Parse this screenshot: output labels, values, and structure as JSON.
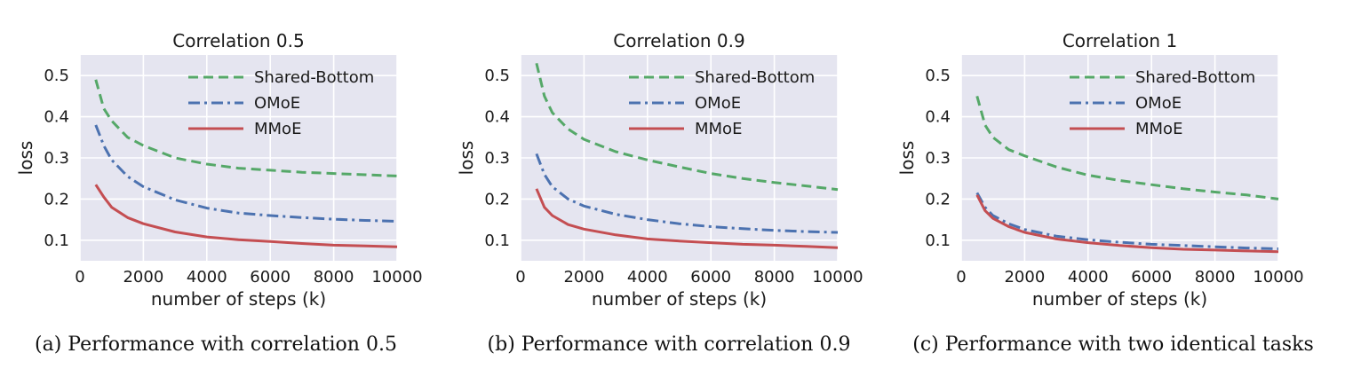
{
  "style": {
    "panel_background": "#e5e5f0",
    "grid_color": "#ffffff",
    "text_color": "#1a1a1a"
  },
  "chart_data": [
    {
      "type": "line",
      "title": "Correlation 0.5",
      "xlabel": "number of steps (k)",
      "ylabel": "loss",
      "xlim": [
        0,
        10000
      ],
      "ylim": [
        0.05,
        0.55
      ],
      "xticks": [
        0,
        2000,
        4000,
        6000,
        8000,
        10000
      ],
      "yticks": [
        0.1,
        0.2,
        0.3,
        0.4,
        0.5
      ],
      "grid": true,
      "legend_position": "top-right",
      "x": [
        500,
        750,
        1000,
        1500,
        2000,
        3000,
        4000,
        5000,
        6000,
        7000,
        8000,
        9000,
        10000
      ],
      "series": [
        {
          "name": "Shared-Bottom",
          "color": "#55a868",
          "dash": "dashed",
          "values": [
            0.49,
            0.42,
            0.39,
            0.35,
            0.33,
            0.3,
            0.285,
            0.275,
            0.27,
            0.265,
            0.262,
            0.259,
            0.256
          ]
        },
        {
          "name": "OMoE",
          "color": "#4c72b0",
          "dash": "dashdot",
          "values": [
            0.38,
            0.33,
            0.295,
            0.255,
            0.23,
            0.198,
            0.178,
            0.166,
            0.16,
            0.155,
            0.151,
            0.148,
            0.146
          ]
        },
        {
          "name": "MMoE",
          "color": "#c44e52",
          "dash": "solid",
          "values": [
            0.235,
            0.205,
            0.18,
            0.155,
            0.14,
            0.12,
            0.108,
            0.101,
            0.097,
            0.092,
            0.088,
            0.086,
            0.084
          ]
        }
      ]
    },
    {
      "type": "line",
      "title": "Correlation 0.9",
      "xlabel": "number of steps (k)",
      "ylabel": "loss",
      "xlim": [
        0,
        10000
      ],
      "ylim": [
        0.05,
        0.55
      ],
      "xticks": [
        0,
        2000,
        4000,
        6000,
        8000,
        10000
      ],
      "yticks": [
        0.1,
        0.2,
        0.3,
        0.4,
        0.5
      ],
      "grid": true,
      "legend_position": "top-right",
      "x": [
        500,
        750,
        1000,
        1500,
        2000,
        3000,
        4000,
        5000,
        6000,
        7000,
        8000,
        9000,
        10000
      ],
      "series": [
        {
          "name": "Shared-Bottom",
          "color": "#55a868",
          "dash": "dashed",
          "values": [
            0.53,
            0.45,
            0.41,
            0.37,
            0.345,
            0.315,
            0.295,
            0.278,
            0.262,
            0.25,
            0.24,
            0.232,
            0.223
          ]
        },
        {
          "name": "OMoE",
          "color": "#4c72b0",
          "dash": "dashdot",
          "values": [
            0.31,
            0.26,
            0.23,
            0.2,
            0.183,
            0.163,
            0.15,
            0.14,
            0.133,
            0.128,
            0.124,
            0.121,
            0.119
          ]
        },
        {
          "name": "MMoE",
          "color": "#c44e52",
          "dash": "solid",
          "values": [
            0.225,
            0.18,
            0.16,
            0.138,
            0.127,
            0.113,
            0.103,
            0.098,
            0.094,
            0.09,
            0.088,
            0.085,
            0.082
          ]
        }
      ]
    },
    {
      "type": "line",
      "title": "Correlation 1",
      "xlabel": "number of steps (k)",
      "ylabel": "loss",
      "xlim": [
        0,
        10000
      ],
      "ylim": [
        0.05,
        0.55
      ],
      "xticks": [
        0,
        2000,
        4000,
        6000,
        8000,
        10000
      ],
      "yticks": [
        0.1,
        0.2,
        0.3,
        0.4,
        0.5
      ],
      "grid": true,
      "legend_position": "top-right",
      "x": [
        500,
        750,
        1000,
        1500,
        2000,
        3000,
        4000,
        5000,
        6000,
        7000,
        8000,
        9000,
        10000
      ],
      "series": [
        {
          "name": "Shared-Bottom",
          "color": "#55a868",
          "dash": "dashed",
          "values": [
            0.45,
            0.38,
            0.35,
            0.32,
            0.305,
            0.278,
            0.258,
            0.245,
            0.235,
            0.225,
            0.217,
            0.21,
            0.2
          ]
        },
        {
          "name": "OMoE",
          "color": "#4c72b0",
          "dash": "dashdot",
          "values": [
            0.215,
            0.18,
            0.16,
            0.14,
            0.126,
            0.11,
            0.101,
            0.095,
            0.09,
            0.087,
            0.084,
            0.081,
            0.079
          ]
        },
        {
          "name": "MMoE",
          "color": "#c44e52",
          "dash": "solid",
          "values": [
            0.21,
            0.172,
            0.153,
            0.133,
            0.119,
            0.103,
            0.094,
            0.087,
            0.082,
            0.078,
            0.076,
            0.074,
            0.072
          ]
        }
      ]
    }
  ],
  "captions": {
    "a": "(a) Performance with correlation 0.5",
    "b": "(b) Performance with correlation 0.9",
    "c": "(c) Performance with two identical tasks"
  }
}
